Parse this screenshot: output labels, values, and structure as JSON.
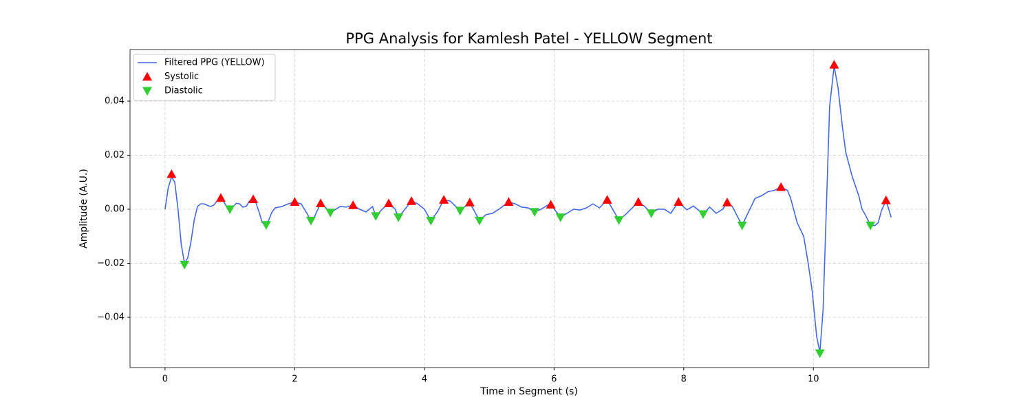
{
  "chart_data": {
    "type": "line",
    "title": "PPG Analysis for Kamlesh Patel - YELLOW Segment",
    "xlabel": "Time in Segment (s)",
    "ylabel": "Amplitude (A.U.)",
    "xlim": [
      -0.54,
      11.78
    ],
    "ylim": [
      -0.0586,
      0.0591
    ],
    "xticks": [
      0,
      2,
      4,
      6,
      8,
      10
    ],
    "yticks": [
      {
        "value": -0.04,
        "label": "−0.04"
      },
      {
        "value": -0.02,
        "label": "−0.02"
      },
      {
        "value": 0,
        "label": "0.00"
      },
      0.02,
      0.04
    ],
    "grid": true,
    "legend": "upper-left",
    "series": [
      {
        "name": "Filtered PPG (YELLOW)",
        "type": "line",
        "color": "#4169e1",
        "x": [
          0,
          0.05,
          0.1,
          0.15,
          0.2,
          0.25,
          0.3,
          0.35,
          0.4,
          0.45,
          0.5,
          0.55,
          0.6,
          0.65,
          0.7,
          0.75,
          0.8,
          0.85,
          0.9,
          0.95,
          1.0,
          1.05,
          1.1,
          1.15,
          1.2,
          1.25,
          1.3,
          1.35,
          1.4,
          1.45,
          1.5,
          1.55,
          1.6,
          1.65,
          1.7,
          1.8,
          1.9,
          2.0,
          2.1,
          2.2,
          2.25,
          2.3,
          2.4,
          2.5,
          2.55,
          2.6,
          2.7,
          2.8,
          2.9,
          3.0,
          3.1,
          3.2,
          3.25,
          3.35,
          3.45,
          3.55,
          3.6,
          3.7,
          3.8,
          3.9,
          4.0,
          4.1,
          4.2,
          4.3,
          4.4,
          4.55,
          4.7,
          4.85,
          4.95,
          5.05,
          5.15,
          5.3,
          5.4,
          5.5,
          5.6,
          5.7,
          5.8,
          5.9,
          5.95,
          6.1,
          6.2,
          6.3,
          6.4,
          6.5,
          6.6,
          6.7,
          6.82,
          7.0,
          7.1,
          7.3,
          7.4,
          7.5,
          7.6,
          7.7,
          7.8,
          7.92,
          8.0,
          8.05,
          8.15,
          8.3,
          8.4,
          8.5,
          8.6,
          8.67,
          8.75,
          8.9,
          9.0,
          9.1,
          9.2,
          9.3,
          9.4,
          9.5,
          9.6,
          9.65,
          9.75,
          9.85,
          9.92,
          9.98,
          10.05,
          10.1,
          10.15,
          10.25,
          10.32,
          10.38,
          10.45,
          10.5,
          10.6,
          10.7,
          10.75,
          10.8,
          10.88,
          10.95,
          11.0,
          11.05,
          11.12,
          11.2
        ],
        "values": [
          0,
          0.008,
          0.012,
          0.01,
          0,
          -0.013,
          -0.02,
          -0.018,
          -0.012,
          -0.004,
          0.001,
          0.002,
          0.002,
          0.0015,
          0.001,
          0.0015,
          0.003,
          0.004,
          0.003,
          0.001,
          0,
          0.001,
          0.0022,
          0.002,
          0.0008,
          0.001,
          0.003,
          0.0037,
          0.0025,
          -0.001,
          -0.005,
          -0.0058,
          -0.004,
          -0.001,
          0.0005,
          0.001,
          0.002,
          0.0027,
          0.002,
          -0.002,
          -0.0042,
          -0.003,
          0.0022,
          0,
          -0.0012,
          -0.0005,
          0.001,
          0.0008,
          0.0015,
          0,
          -0.001,
          0.001,
          -0.0025,
          0,
          0.0022,
          0,
          -0.003,
          0,
          0.003,
          0.002,
          0,
          -0.0042,
          -0.001,
          0.0035,
          0.003,
          -0.0005,
          0.0025,
          -0.0042,
          -0.002,
          -0.0015,
          0,
          0.0027,
          0.002,
          0.0008,
          0.0005,
          -0.001,
          0,
          0.0015,
          0.0017,
          -0.003,
          -0.0015,
          0,
          -0.0003,
          0.0005,
          0.002,
          0.0005,
          0.0035,
          -0.004,
          -0.002,
          0.0027,
          0.001,
          -0.0015,
          0,
          0,
          -0.0015,
          0.0027,
          0.0008,
          -0.0002,
          0.0012,
          -0.0018,
          0.0008,
          -0.0015,
          0,
          0.0025,
          0.001,
          -0.006,
          -0.001,
          0.004,
          0.005,
          0.0065,
          0.007,
          0.0082,
          0.007,
          0.004,
          -0.005,
          -0.01,
          -0.02,
          -0.03,
          -0.047,
          -0.053,
          -0.037,
          0.038,
          0.053,
          0.045,
          0.03,
          0.021,
          0.012,
          0.005,
          0,
          -0.002,
          -0.006,
          -0.006,
          -0.005,
          -0.0005,
          0.0033,
          -0.003
        ]
      },
      {
        "name": "Systolic",
        "type": "scatter",
        "marker": "triangle-up",
        "color": "#ff0000",
        "x": [
          0.1,
          0.86,
          1.36,
          2.0,
          2.4,
          2.9,
          3.45,
          3.8,
          4.3,
          4.7,
          5.3,
          5.95,
          6.82,
          7.3,
          7.92,
          8.67,
          9.5,
          10.32,
          11.12
        ],
        "values": [
          0.013,
          0.0042,
          0.0037,
          0.0027,
          0.0022,
          0.0015,
          0.0022,
          0.003,
          0.0035,
          0.0025,
          0.0027,
          0.0017,
          0.0035,
          0.0027,
          0.0027,
          0.0025,
          0.0082,
          0.0535,
          0.0033
        ]
      },
      {
        "name": "Diastolic",
        "type": "scatter",
        "marker": "triangle-down",
        "color": "#32cd32",
        "x": [
          0.3,
          1.0,
          1.56,
          2.25,
          2.55,
          3.25,
          3.6,
          4.1,
          4.55,
          4.85,
          5.7,
          6.1,
          7.0,
          7.5,
          8.3,
          8.9,
          10.1,
          10.88
        ],
        "values": [
          -0.0205,
          0,
          -0.0058,
          -0.0042,
          -0.0012,
          -0.0025,
          -0.003,
          -0.0042,
          -0.0005,
          -0.0042,
          -0.001,
          -0.003,
          -0.004,
          -0.0015,
          -0.0018,
          -0.006,
          -0.0533,
          -0.006
        ]
      }
    ]
  }
}
